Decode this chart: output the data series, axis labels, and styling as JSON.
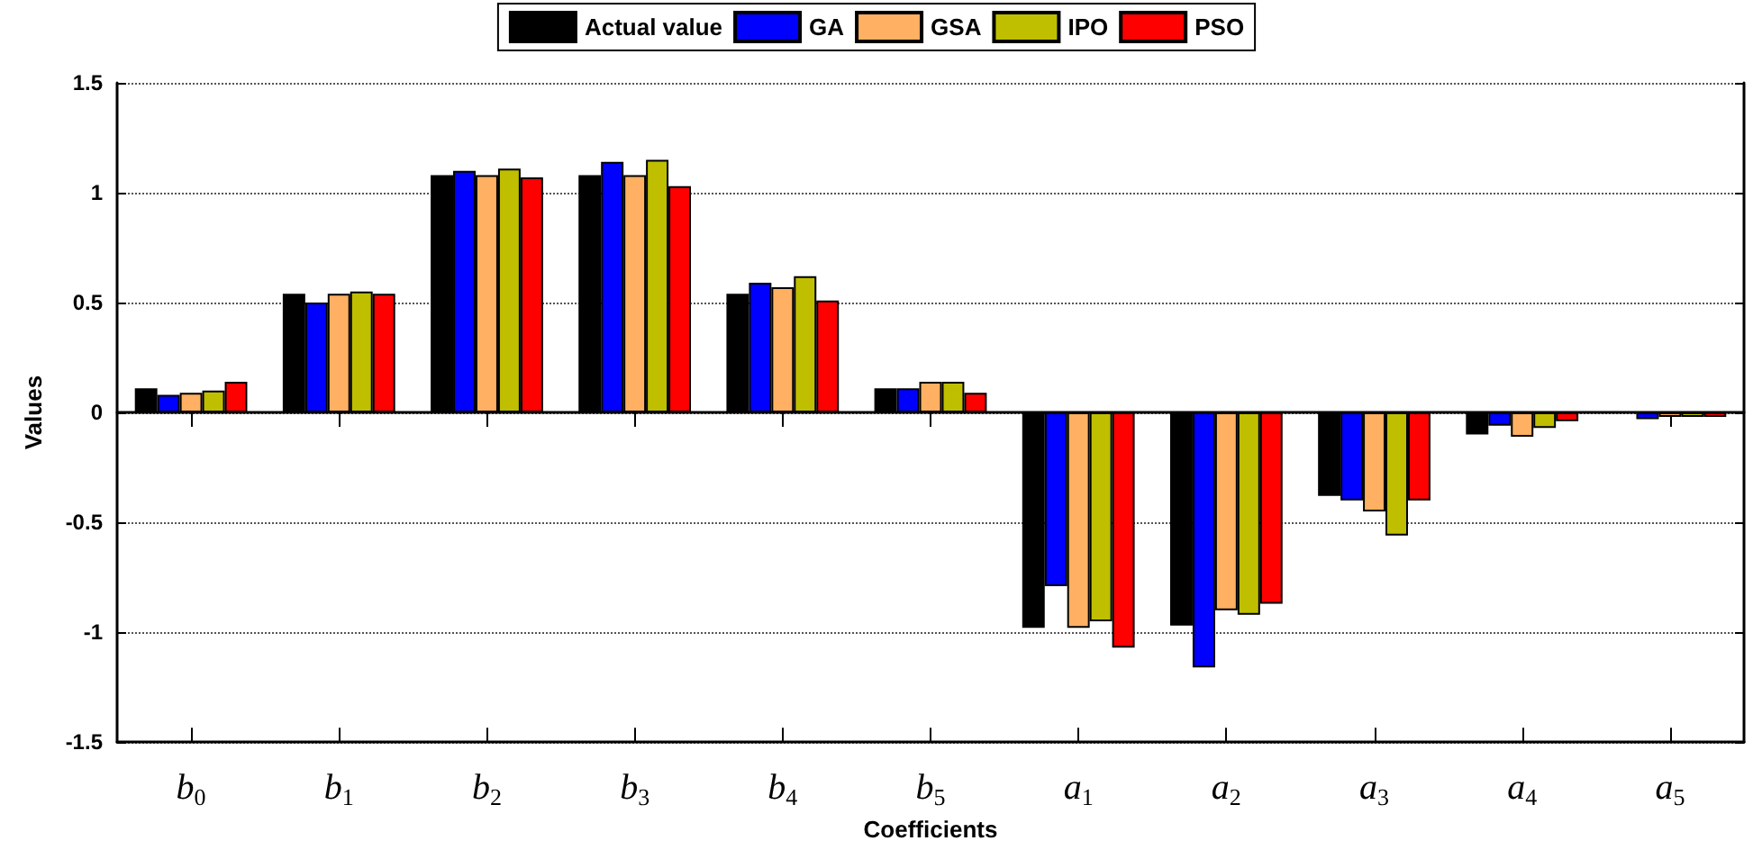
{
  "chart_data": {
    "type": "bar",
    "xlabel": "Coefficients",
    "ylabel": "Values",
    "categories": [
      "b$_{0}$",
      "b$_{1}$",
      "b$_{2}$",
      "b$_{3}$",
      "b$_{4}$",
      "b$_{5}$",
      "a$_{1}$",
      "a$_{2}$",
      "a$_{3}$",
      "a$_{4}$",
      "a$_{5}$"
    ],
    "series": [
      {
        "name": "Actual value",
        "color": "#000000",
        "values": [
          0.11,
          0.54,
          1.08,
          1.08,
          0.54,
          0.11,
          -0.98,
          -0.97,
          -0.38,
          -0.1,
          0
        ]
      },
      {
        "name": "GA",
        "color": "#0000ff",
        "values": [
          0.08,
          0.5,
          1.1,
          1.14,
          0.59,
          0.11,
          -0.79,
          -1.16,
          -0.4,
          -0.06,
          -0.03
        ]
      },
      {
        "name": "GSA",
        "color": "#ffb062",
        "values": [
          0.09,
          0.54,
          1.08,
          1.08,
          0.57,
          0.14,
          -0.98,
          -0.9,
          -0.45,
          -0.11,
          -0.02
        ]
      },
      {
        "name": "IPO",
        "color": "#bfbf00",
        "values": [
          0.1,
          0.55,
          1.11,
          1.15,
          0.62,
          0.14,
          -0.95,
          -0.92,
          -0.56,
          -0.07,
          -0.02
        ]
      },
      {
        "name": "PSO",
        "color": "#ff0000",
        "values": [
          0.14,
          0.54,
          1.07,
          1.03,
          0.51,
          0.09,
          -1.07,
          -0.87,
          -0.4,
          -0.04,
          -0.02
        ]
      }
    ],
    "ylim": [
      -1.5,
      1.5
    ],
    "yticks": [
      -1.5,
      -1,
      -0.5,
      0,
      0.5,
      1,
      1.5
    ],
    "grid": "y",
    "legend": "top"
  }
}
